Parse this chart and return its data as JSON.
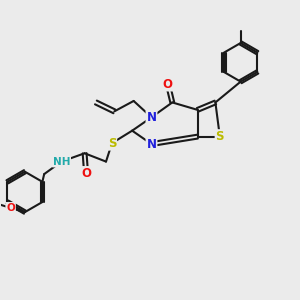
{
  "background_color": "#ebebeb",
  "bond_color": "#1a1a1a",
  "atom_colors": {
    "N": "#2020dd",
    "O": "#ee1111",
    "S": "#bbbb00",
    "H": "#22aaaa"
  },
  "lw": 1.5,
  "fs_large": 8.5,
  "fs_small": 7.5
}
